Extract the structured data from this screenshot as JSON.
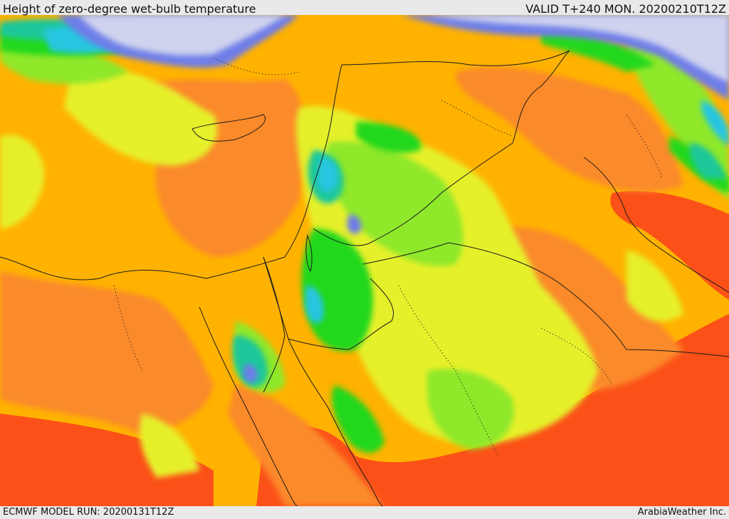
{
  "header": {
    "title": "Height of zero-degree wet-bulb temperature",
    "valid": "VALID T+240 MON. 20200210T12Z"
  },
  "footer": {
    "model_run": "ECMWF MODEL RUN: 20200131T12Z",
    "credit": "ArabiaWeather Inc."
  },
  "colors": {
    "very_low": "#cfd3ee",
    "low_blue": "#6e7ee8",
    "cyan": "#27c6e0",
    "teal": "#1fc79a",
    "green": "#23d81f",
    "light_green": "#8fe82a",
    "yellow_green": "#e6f029",
    "amber": "#ffb200",
    "orange": "#fb8a2c",
    "red_orange": "#fb5118",
    "border_line": "#1b1b1b"
  }
}
